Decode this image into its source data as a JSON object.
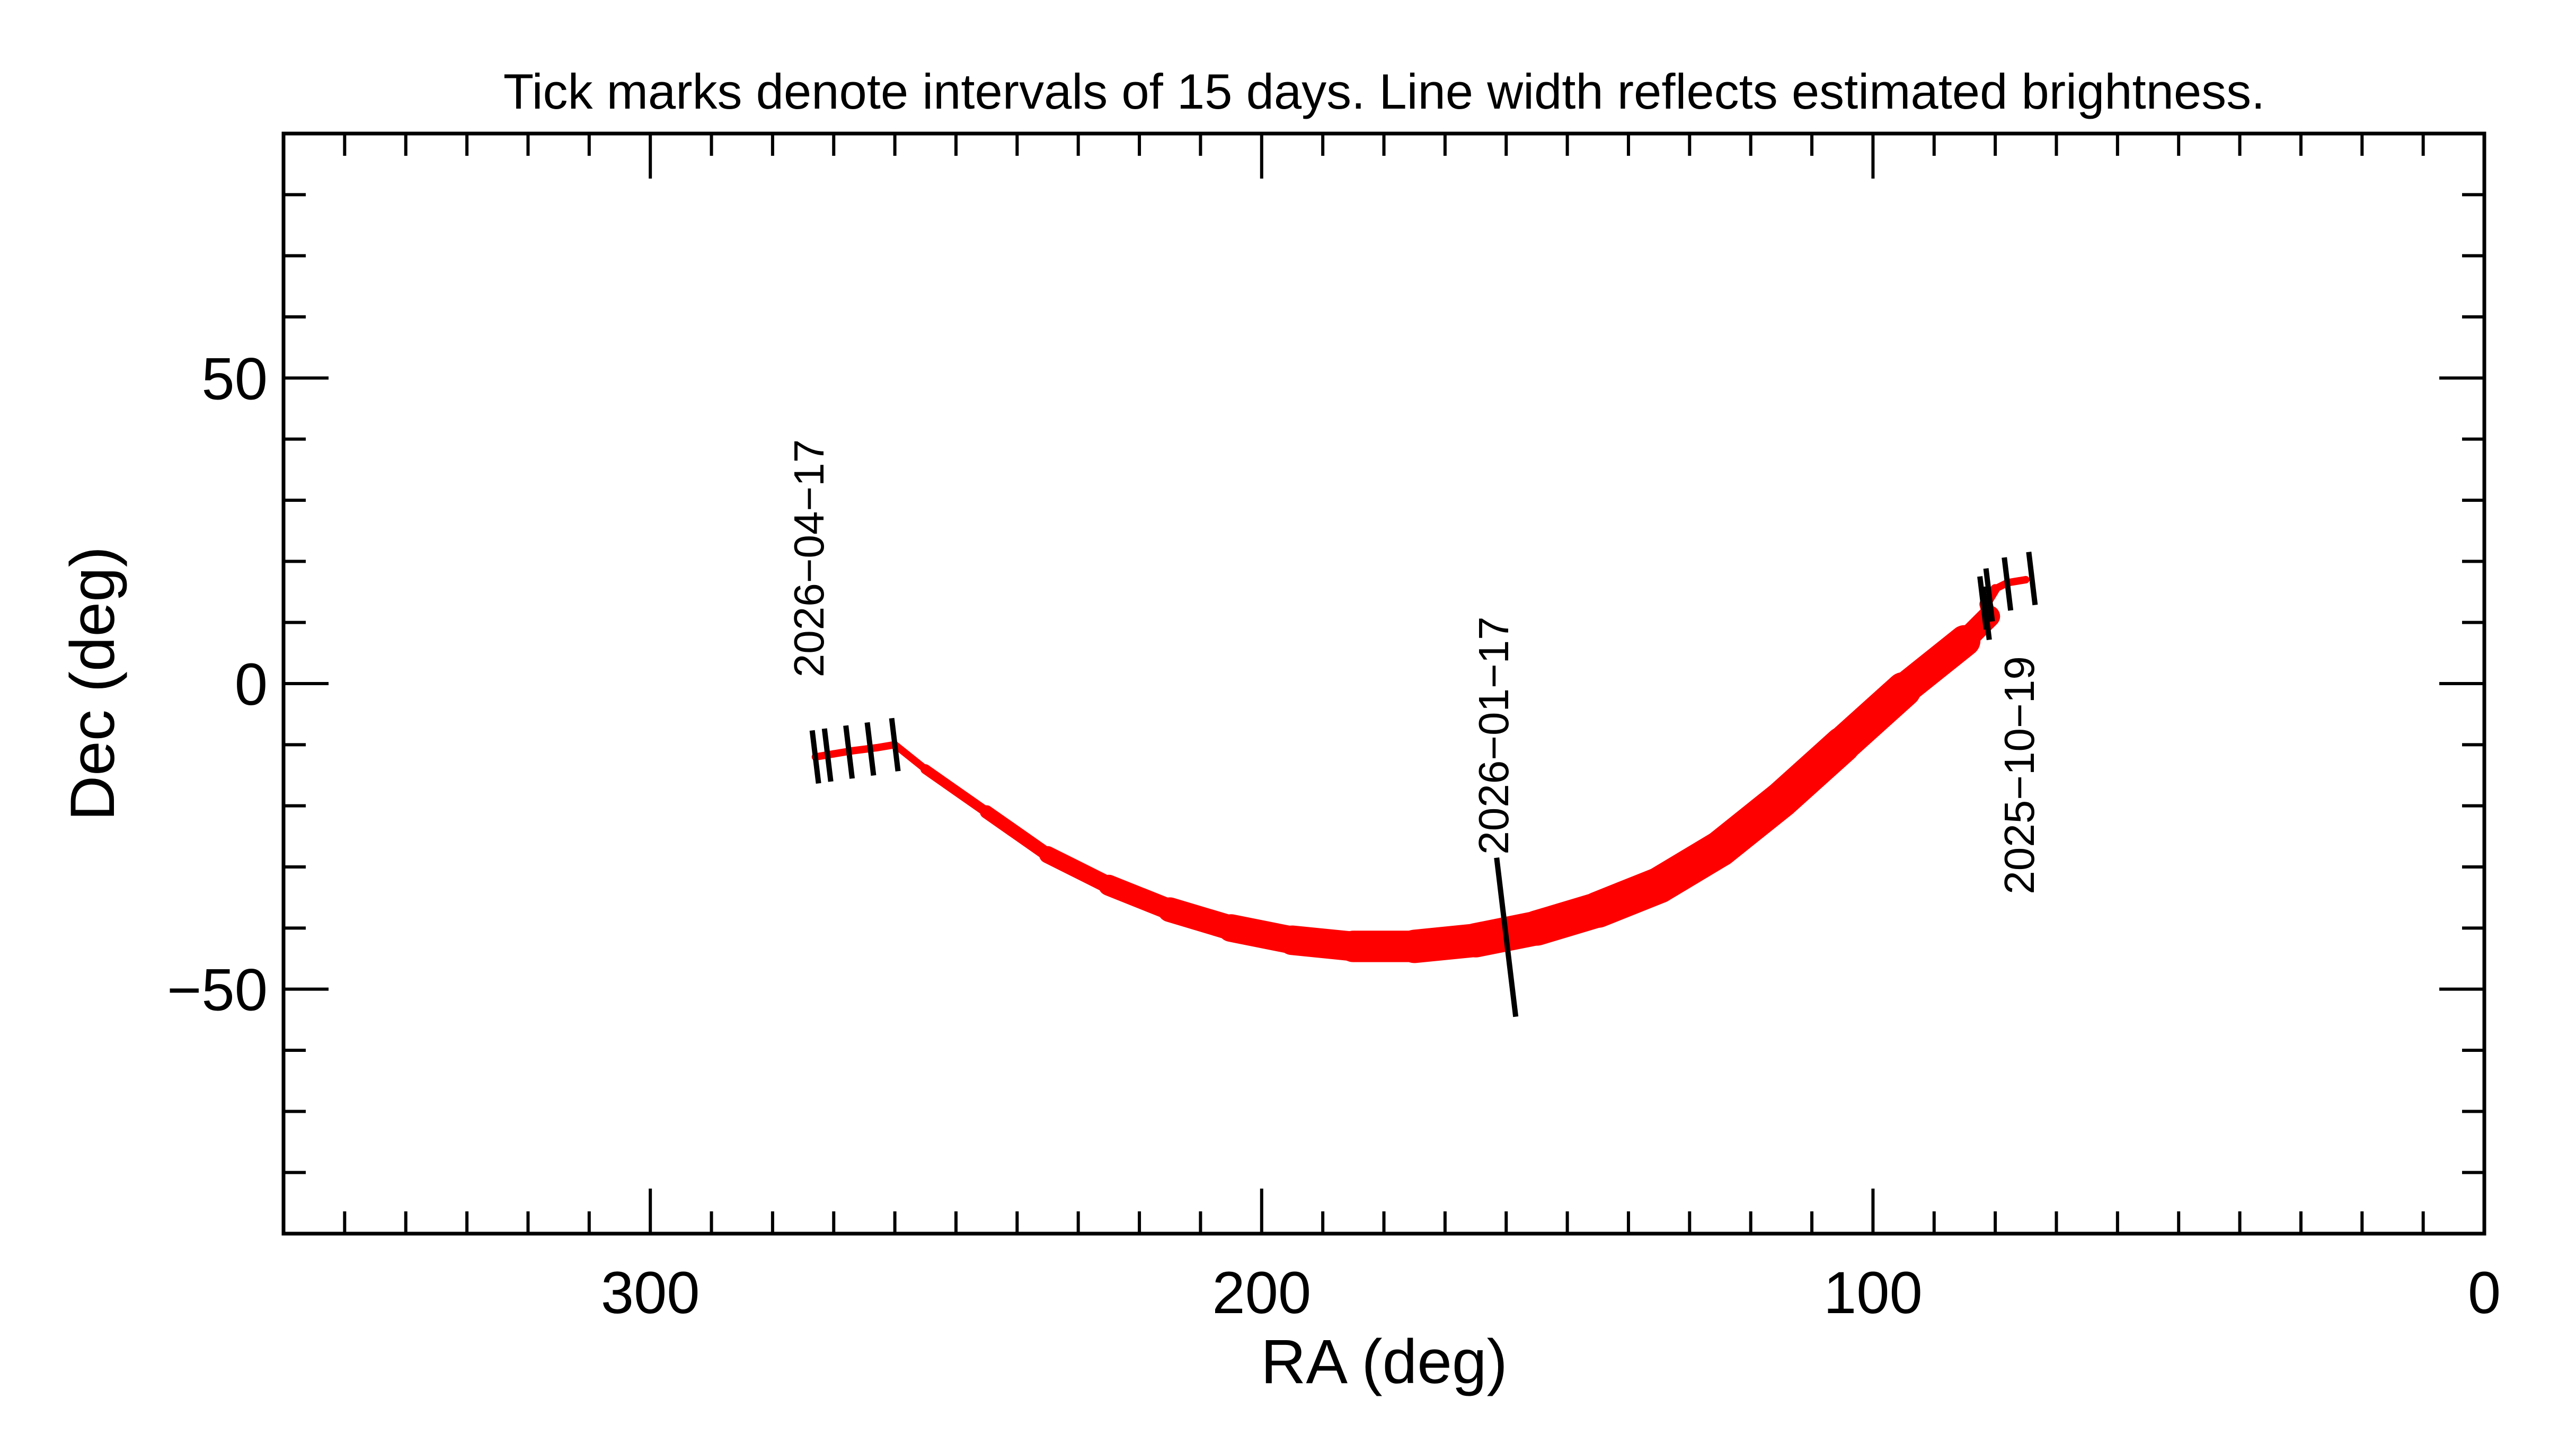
{
  "chart_data": {
    "type": "line",
    "title": "Tick marks denote intervals of 15 days.  Line width reflects estimated brightness.",
    "xlabel": "RA (deg)",
    "ylabel": "Dec (deg)",
    "xlim": [
      360,
      0
    ],
    "ylim": [
      -90,
      90
    ],
    "x_major_ticks": [
      300,
      200,
      100,
      0
    ],
    "x_tick_labels": [
      "300",
      "200",
      "100",
      "0"
    ],
    "x_minor_step": 10,
    "y_major_ticks": [
      50,
      0,
      -50
    ],
    "y_tick_labels": [
      "50",
      "0",
      "−50"
    ],
    "y_minor_step": 10,
    "grid": false,
    "line_color": "#ff0000",
    "tick_color": "#000000",
    "track": {
      "ra": [
        75,
        78,
        80,
        81.5,
        81,
        85,
        95,
        105,
        115,
        125,
        135,
        145,
        155,
        165,
        175,
        185,
        195,
        205,
        215,
        225,
        235,
        245,
        255,
        260,
        263,
        267,
        270,
        273
      ],
      "dec": [
        17,
        16.5,
        15.5,
        13,
        11,
        7,
        -1,
        -10,
        -19,
        -27,
        -33,
        -37,
        -40,
        -42,
        -43,
        -43,
        -42,
        -40,
        -37,
        -33,
        -28,
        -21,
        -14,
        -10,
        -10.5,
        -11,
        -11.5,
        -12
      ],
      "relative_width": [
        0.15,
        0.15,
        0.2,
        0.3,
        0.4,
        0.75,
        0.9,
        0.95,
        0.95,
        0.95,
        0.95,
        0.95,
        0.9,
        0.9,
        0.85,
        0.8,
        0.75,
        0.7,
        0.6,
        0.5,
        0.4,
        0.3,
        0.22,
        0.15,
        0.12,
        0.12,
        0.12,
        0.12
      ]
    },
    "time_ticks": [
      {
        "ra": 74,
        "dec": 17.2,
        "long": false
      },
      {
        "ra": 78,
        "dec": 16.3,
        "long": false
      },
      {
        "ra": 81,
        "dec": 14.5,
        "long": false
      },
      {
        "ra": 82,
        "dec": 13.2,
        "long": false
      },
      {
        "ra": 81.5,
        "dec": 11.5,
        "long": false
      },
      {
        "ra": 160,
        "dec": -41.5,
        "long": true
      },
      {
        "ra": 260,
        "dec": -10,
        "long": false
      },
      {
        "ra": 264,
        "dec": -10.7,
        "long": false
      },
      {
        "ra": 267.5,
        "dec": -11.2,
        "long": false
      },
      {
        "ra": 271,
        "dec": -11.7,
        "long": false
      },
      {
        "ra": 273,
        "dec": -12,
        "long": false
      }
    ],
    "date_labels": [
      {
        "text": "2025−10−19",
        "ra": 75.5,
        "dec": -15
      },
      {
        "text": "2026−01−17",
        "ra": 161.5,
        "dec": -8.5
      },
      {
        "text": "2026−04−17",
        "ra": 273.5,
        "dec": 20.5
      }
    ]
  }
}
